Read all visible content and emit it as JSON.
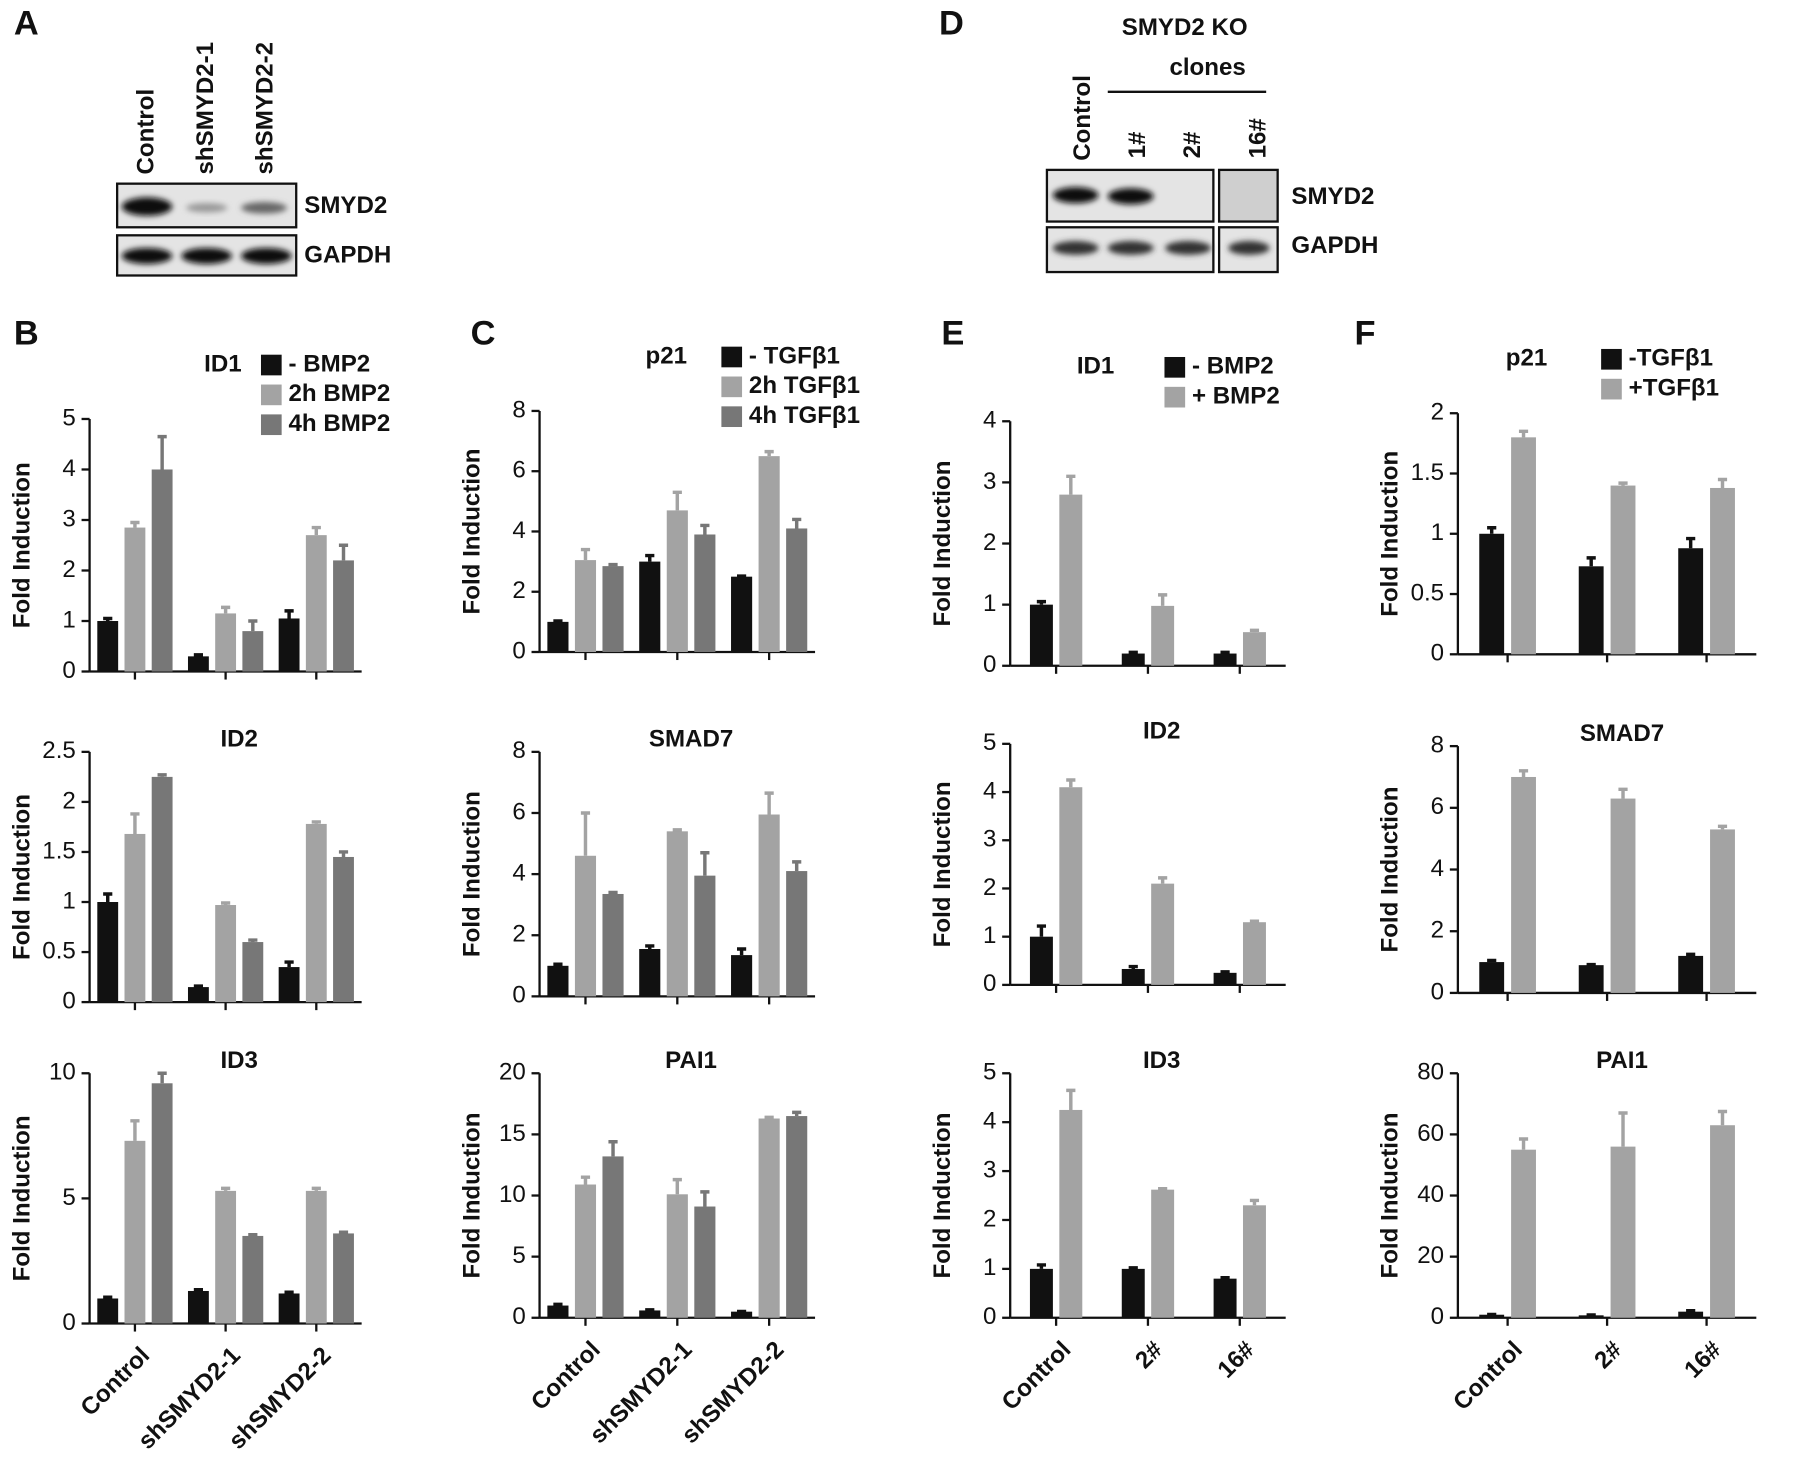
{
  "blot_A": {
    "label": "A",
    "lanes": [
      "Control",
      "shSMYD2-1",
      "shSMYD2-2"
    ],
    "rows": [
      "SMYD2",
      "GAPDH"
    ]
  },
  "blot_D": {
    "label": "D",
    "header": "SMYD2 KO",
    "subheader": "clones",
    "lanes": [
      "Control",
      "1#",
      "2#",
      "16#"
    ],
    "rows": [
      "SMYD2",
      "GAPDH"
    ]
  },
  "panel_labels": [
    "B",
    "C",
    "E",
    "F"
  ],
  "chart_data": [
    {
      "type": "bar",
      "title": "ID1",
      "ylabel": "Fold Induction",
      "categories": [
        null,
        null,
        null
      ],
      "legend": "top-right",
      "ylim": [
        0,
        5
      ],
      "yticks": [
        0,
        1,
        2,
        3,
        4,
        5
      ],
      "series": [
        {
          "name": "-  BMP2",
          "color": "#111111",
          "values": [
            1.0,
            0.3,
            1.05
          ],
          "errors": [
            0.05,
            0.03,
            0.15
          ]
        },
        {
          "name": "2h BMP2",
          "color": "#a3a3a3",
          "values": [
            2.85,
            1.15,
            2.7
          ],
          "errors": [
            0.1,
            0.12,
            0.15
          ]
        },
        {
          "name": "4h BMP2",
          "color": "#777777",
          "values": [
            4.0,
            0.8,
            2.2
          ],
          "errors": [
            0.65,
            0.2,
            0.3
          ]
        }
      ]
    },
    {
      "type": "bar",
      "title": "ID2",
      "ylabel": "Fold Induction",
      "categories": [
        null,
        null,
        null
      ],
      "ylim": [
        0,
        2.5
      ],
      "yticks": [
        0,
        0.5,
        1,
        1.5,
        2,
        2.5
      ],
      "series": [
        {
          "color": "#111111",
          "values": [
            1.0,
            0.15,
            0.35
          ],
          "errors": [
            0.08,
            0.01,
            0.05
          ]
        },
        {
          "color": "#a3a3a3",
          "values": [
            1.68,
            0.97,
            1.78
          ],
          "errors": [
            0.2,
            0.02,
            0.02
          ]
        },
        {
          "color": "#777777",
          "values": [
            2.25,
            0.6,
            1.45
          ],
          "errors": [
            0.02,
            0.02,
            0.05
          ]
        }
      ]
    },
    {
      "type": "bar",
      "title": "ID3",
      "ylabel": "Fold Induction",
      "categories": [
        "Control",
        "shSMYD2-1",
        "shSMYD2-2"
      ],
      "ylim": [
        0,
        10
      ],
      "yticks": [
        0,
        5,
        10
      ],
      "series": [
        {
          "color": "#111111",
          "values": [
            1.0,
            1.3,
            1.2
          ],
          "errors": [
            0.05,
            0.05,
            0.05
          ]
        },
        {
          "color": "#a3a3a3",
          "values": [
            7.3,
            5.3,
            5.3
          ],
          "errors": [
            0.8,
            0.1,
            0.1
          ]
        },
        {
          "color": "#777777",
          "values": [
            9.6,
            3.5,
            3.6
          ],
          "errors": [
            0.4,
            0.05,
            0.05
          ]
        }
      ]
    },
    {
      "type": "bar",
      "title": "p21",
      "ylabel": "Fold Induction",
      "categories": [
        null,
        null,
        null
      ],
      "legend": "top-right",
      "ylim": [
        0,
        8
      ],
      "yticks": [
        0,
        2,
        4,
        6,
        8
      ],
      "series": [
        {
          "name": "-  TGFβ1",
          "color": "#111111",
          "values": [
            1.0,
            3.0,
            2.5
          ],
          "errors": [
            0.03,
            0.2,
            0.02
          ]
        },
        {
          "name": "2h TGFβ1",
          "color": "#a3a3a3",
          "values": [
            3.05,
            4.7,
            6.5
          ],
          "errors": [
            0.35,
            0.6,
            0.15
          ]
        },
        {
          "name": "4h TGFβ1",
          "color": "#777777",
          "values": [
            2.85,
            3.9,
            4.1
          ],
          "errors": [
            0.05,
            0.3,
            0.3
          ]
        }
      ]
    },
    {
      "type": "bar",
      "title": "SMAD7",
      "ylabel": "Fold Induction",
      "categories": [
        null,
        null,
        null
      ],
      "ylim": [
        0,
        8
      ],
      "yticks": [
        0,
        2,
        4,
        6,
        8
      ],
      "series": [
        {
          "color": "#111111",
          "values": [
            1.0,
            1.55,
            1.35
          ],
          "errors": [
            0.05,
            0.1,
            0.2
          ]
        },
        {
          "color": "#a3a3a3",
          "values": [
            4.6,
            5.4,
            5.95
          ],
          "errors": [
            1.4,
            0.05,
            0.7
          ]
        },
        {
          "color": "#777777",
          "values": [
            3.35,
            3.95,
            4.1
          ],
          "errors": [
            0.05,
            0.75,
            0.3
          ]
        }
      ]
    },
    {
      "type": "bar",
      "title": "PAI1",
      "ylabel": "Fold Induction",
      "categories": [
        "Control",
        "shSMYD2-1",
        "shSMYD2-2"
      ],
      "ylim": [
        0,
        20
      ],
      "yticks": [
        0,
        5,
        10,
        15,
        20
      ],
      "series": [
        {
          "color": "#111111",
          "values": [
            1.0,
            0.6,
            0.5
          ],
          "errors": [
            0.1,
            0.05,
            0.02
          ]
        },
        {
          "color": "#a3a3a3",
          "values": [
            10.9,
            10.1,
            16.3
          ],
          "errors": [
            0.6,
            1.2,
            0.1
          ]
        },
        {
          "color": "#777777",
          "values": [
            13.2,
            9.1,
            16.5
          ],
          "errors": [
            1.2,
            1.2,
            0.3
          ]
        }
      ]
    },
    {
      "type": "bar",
      "title": "ID1",
      "ylabel": "Fold Induction",
      "categories": [
        null,
        null,
        null
      ],
      "legend": "top-right",
      "ylim": [
        0,
        4
      ],
      "yticks": [
        0,
        1,
        2,
        3,
        4
      ],
      "series": [
        {
          "name": "- BMP2",
          "color": "#111111",
          "values": [
            1.0,
            0.2,
            0.2
          ],
          "errors": [
            0.05,
            0.02,
            0.02
          ]
        },
        {
          "name": "+ BMP2",
          "color": "#a3a3a3",
          "values": [
            2.8,
            0.98,
            0.55
          ],
          "errors": [
            0.3,
            0.18,
            0.03
          ]
        }
      ]
    },
    {
      "type": "bar",
      "title": "ID2",
      "ylabel": "Fold Induction",
      "categories": [
        null,
        null,
        null
      ],
      "ylim": [
        0,
        5
      ],
      "yticks": [
        0,
        1,
        2,
        3,
        4,
        5
      ],
      "series": [
        {
          "color": "#111111",
          "values": [
            1.0,
            0.33,
            0.25
          ],
          "errors": [
            0.22,
            0.05,
            0.02
          ]
        },
        {
          "color": "#a3a3a3",
          "values": [
            4.1,
            2.1,
            1.3
          ],
          "errors": [
            0.15,
            0.12,
            0.02
          ]
        }
      ]
    },
    {
      "type": "bar",
      "title": "ID3",
      "ylabel": "Fold Induction",
      "categories": [
        "Control",
        "2#",
        "16#"
      ],
      "ylim": [
        0,
        5
      ],
      "yticks": [
        0,
        1,
        2,
        3,
        4,
        5
      ],
      "series": [
        {
          "color": "#111111",
          "values": [
            1.0,
            1.0,
            0.8
          ],
          "errors": [
            0.08,
            0.02,
            0.02
          ]
        },
        {
          "color": "#a3a3a3",
          "values": [
            4.25,
            2.62,
            2.3
          ],
          "errors": [
            0.4,
            0.02,
            0.1
          ]
        }
      ]
    },
    {
      "type": "bar",
      "title": "p21",
      "ylabel": "Fold Induction",
      "categories": [
        null,
        null,
        null
      ],
      "legend": "top-right",
      "ylim": [
        0,
        2
      ],
      "yticks": [
        0,
        0.5,
        1,
        1.5,
        2
      ],
      "series": [
        {
          "name": "-TGFβ1",
          "color": "#111111",
          "values": [
            1.0,
            0.73,
            0.88
          ],
          "errors": [
            0.05,
            0.07,
            0.08
          ]
        },
        {
          "name": "+TGFβ1",
          "color": "#a3a3a3",
          "values": [
            1.8,
            1.4,
            1.38
          ],
          "errors": [
            0.05,
            0.02,
            0.07
          ]
        }
      ]
    },
    {
      "type": "bar",
      "title": "SMAD7",
      "ylabel": "Fold Induction",
      "categories": [
        null,
        null,
        null
      ],
      "ylim": [
        0,
        8
      ],
      "yticks": [
        0,
        2,
        4,
        6,
        8
      ],
      "series": [
        {
          "color": "#111111",
          "values": [
            1.0,
            0.9,
            1.2
          ],
          "errors": [
            0.05,
            0.02,
            0.05
          ]
        },
        {
          "color": "#a3a3a3",
          "values": [
            7.0,
            6.3,
            5.3
          ],
          "errors": [
            0.2,
            0.3,
            0.1
          ]
        }
      ]
    },
    {
      "type": "bar",
      "title": "PAI1",
      "ylabel": "Fold Induction",
      "categories": [
        "Control",
        "2#",
        "16#"
      ],
      "ylim": [
        0,
        80
      ],
      "yticks": [
        0,
        20,
        40,
        60,
        80
      ],
      "series": [
        {
          "color": "#111111",
          "values": [
            1.0,
            0.8,
            2.0
          ],
          "errors": [
            0.1,
            0.1,
            0.3
          ]
        },
        {
          "color": "#a3a3a3",
          "values": [
            55,
            56,
            63
          ],
          "errors": [
            3.5,
            11,
            4.5
          ]
        }
      ]
    }
  ]
}
